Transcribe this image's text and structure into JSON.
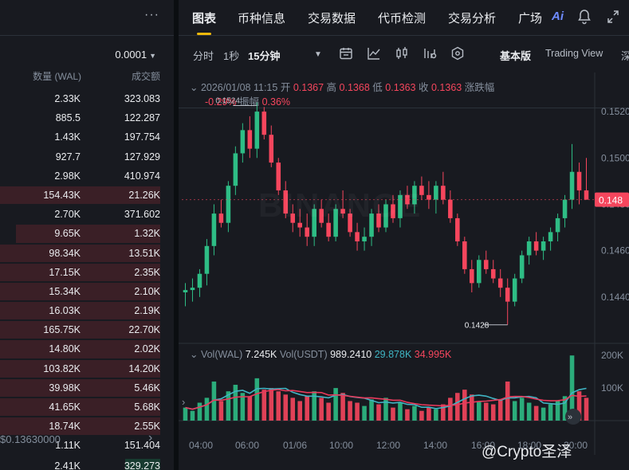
{
  "orderbook": {
    "precision": "0.0001",
    "col_qty": "数量 (WAL)",
    "col_total": "成交额",
    "rows": [
      {
        "qty": "2.33K",
        "total": "323.083"
      },
      {
        "qty": "885.5",
        "total": "122.287"
      },
      {
        "qty": "1.43K",
        "total": "197.754"
      },
      {
        "qty": "927.7",
        "total": "127.929"
      },
      {
        "qty": "2.98K",
        "total": "410.974"
      },
      {
        "qty": "154.43K",
        "total": "21.26K"
      },
      {
        "qty": "2.70K",
        "total": "371.602"
      },
      {
        "qty": "9.65K",
        "total": "1.32K"
      },
      {
        "qty": "98.34K",
        "total": "13.51K"
      },
      {
        "qty": "17.15K",
        "total": "2.35K"
      },
      {
        "qty": "15.34K",
        "total": "2.10K"
      },
      {
        "qty": "16.03K",
        "total": "2.19K"
      },
      {
        "qty": "165.75K",
        "total": "22.70K"
      },
      {
        "qty": "14.80K",
        "total": "2.02K"
      },
      {
        "qty": "103.82K",
        "total": "14.20K"
      },
      {
        "qty": "39.98K",
        "total": "5.46K"
      },
      {
        "qty": "41.65K",
        "total": "5.68K"
      },
      {
        "qty": "18.74K",
        "total": "2.55K"
      },
      {
        "qty": "1.11K",
        "total": "151.404"
      }
    ],
    "depth_fractions": [
      0,
      0,
      0,
      0,
      0,
      1.0,
      0,
      0.9,
      1.0,
      1.0,
      1.0,
      1.0,
      1.0,
      1.0,
      1.0,
      1.0,
      1.0,
      1.0,
      0
    ],
    "mid_price": "$0.13630000",
    "bottom_row": {
      "qty": "2.41K",
      "total": "329.273"
    }
  },
  "tabs": [
    "图表",
    "币种信息",
    "交易数据",
    "代币检测",
    "交易分析",
    "广场"
  ],
  "ai_label": "Ai",
  "toolbar": {
    "time_label": "分时",
    "sec_label": "1秒",
    "interval_label": "15分钟",
    "basic_label": "基本版",
    "tv_label": "Trading View",
    "depth_label": "深"
  },
  "legend": {
    "date": "2026/01/08 11:15",
    "open_lbl": "开",
    "open": "0.1367",
    "high_lbl": "高",
    "high": "0.1368",
    "low_lbl": "低",
    "low": "0.1363",
    "close_lbl": "收",
    "close": "0.1363",
    "change_lbl": "涨跌幅",
    "change": "-0.29%",
    "amp_lbl": "振幅",
    "amp": "0.36%"
  },
  "vol_legend": {
    "wal_lbl": "Vol(WAL)",
    "wal": "7.245K",
    "usdt_lbl": "Vol(USDT)",
    "usdt": "989.2410",
    "ma1": "29.878K",
    "ma2": "34.995K"
  },
  "watermark": "BINANCE",
  "credit": "@Crypto圣泽",
  "colors": {
    "up": "#2ebd85",
    "down": "#f6465d",
    "accent": "#f0b90b",
    "bg": "#181a20",
    "ma1": "#3fb5c4",
    "ma2": "#e83a5c"
  },
  "chart_data": {
    "type": "candlestick",
    "price_ticks": [
      "0.1520",
      "0.1500",
      "0.1480",
      "0.1460",
      "0.1440"
    ],
    "price_tick_values": [
      0.152,
      0.15,
      0.148,
      0.146,
      0.144
    ],
    "current_price_label": "0.148",
    "current_price": 0.1482,
    "annotations": [
      {
        "label": "0.1524",
        "value": 0.1524
      },
      {
        "label": "0.1428",
        "value": 0.1428
      }
    ],
    "x_ticks": [
      "04:00",
      "06:00",
      "01/06",
      "10:00",
      "12:00",
      "14:00",
      "16:00",
      "18:00",
      "20:00"
    ],
    "vol_ticks": [
      "200K",
      "100K"
    ],
    "vol_tick_values": [
      200000,
      100000
    ],
    "candles": [
      {
        "o": 0.1442,
        "h": 0.1446,
        "l": 0.1436,
        "c": 0.1443,
        "v": 40000
      },
      {
        "o": 0.1443,
        "h": 0.1448,
        "l": 0.1438,
        "c": 0.1444,
        "v": 30000
      },
      {
        "o": 0.1444,
        "h": 0.1452,
        "l": 0.144,
        "c": 0.145,
        "v": 55000
      },
      {
        "o": 0.145,
        "h": 0.1465,
        "l": 0.1445,
        "c": 0.1462,
        "v": 70000
      },
      {
        "o": 0.1462,
        "h": 0.148,
        "l": 0.1458,
        "c": 0.1476,
        "v": 120000
      },
      {
        "o": 0.1476,
        "h": 0.1482,
        "l": 0.147,
        "c": 0.1472,
        "v": 60000
      },
      {
        "o": 0.1472,
        "h": 0.149,
        "l": 0.1468,
        "c": 0.1488,
        "v": 90000
      },
      {
        "o": 0.1488,
        "h": 0.1505,
        "l": 0.1484,
        "c": 0.1502,
        "v": 110000
      },
      {
        "o": 0.1502,
        "h": 0.1515,
        "l": 0.1498,
        "c": 0.1512,
        "v": 85000
      },
      {
        "o": 0.1512,
        "h": 0.1518,
        "l": 0.15,
        "c": 0.1504,
        "v": 75000
      },
      {
        "o": 0.1504,
        "h": 0.1524,
        "l": 0.15,
        "c": 0.152,
        "v": 130000
      },
      {
        "o": 0.152,
        "h": 0.1522,
        "l": 0.1508,
        "c": 0.151,
        "v": 95000
      },
      {
        "o": 0.151,
        "h": 0.1514,
        "l": 0.1496,
        "c": 0.1498,
        "v": 100000
      },
      {
        "o": 0.1498,
        "h": 0.15,
        "l": 0.1484,
        "c": 0.1486,
        "v": 90000
      },
      {
        "o": 0.1486,
        "h": 0.149,
        "l": 0.1474,
        "c": 0.1476,
        "v": 80000
      },
      {
        "o": 0.1476,
        "h": 0.148,
        "l": 0.1468,
        "c": 0.1472,
        "v": 70000
      },
      {
        "o": 0.1472,
        "h": 0.1478,
        "l": 0.1466,
        "c": 0.147,
        "v": 60000
      },
      {
        "o": 0.147,
        "h": 0.1476,
        "l": 0.1462,
        "c": 0.1466,
        "v": 75000
      },
      {
        "o": 0.1466,
        "h": 0.148,
        "l": 0.1462,
        "c": 0.1478,
        "v": 90000
      },
      {
        "o": 0.1478,
        "h": 0.1482,
        "l": 0.147,
        "c": 0.1472,
        "v": 70000
      },
      {
        "o": 0.1472,
        "h": 0.1476,
        "l": 0.1464,
        "c": 0.1466,
        "v": 55000
      },
      {
        "o": 0.1466,
        "h": 0.148,
        "l": 0.1464,
        "c": 0.1478,
        "v": 100000
      },
      {
        "o": 0.1478,
        "h": 0.1486,
        "l": 0.1474,
        "c": 0.1476,
        "v": 85000
      },
      {
        "o": 0.1476,
        "h": 0.1478,
        "l": 0.1466,
        "c": 0.1468,
        "v": 60000
      },
      {
        "o": 0.1468,
        "h": 0.1472,
        "l": 0.146,
        "c": 0.1464,
        "v": 55000
      },
      {
        "o": 0.1464,
        "h": 0.147,
        "l": 0.146,
        "c": 0.1466,
        "v": 45000
      },
      {
        "o": 0.1466,
        "h": 0.1478,
        "l": 0.1462,
        "c": 0.1476,
        "v": 65000
      },
      {
        "o": 0.1476,
        "h": 0.148,
        "l": 0.1468,
        "c": 0.147,
        "v": 50000
      },
      {
        "o": 0.147,
        "h": 0.1482,
        "l": 0.1468,
        "c": 0.148,
        "v": 70000
      },
      {
        "o": 0.148,
        "h": 0.1484,
        "l": 0.1472,
        "c": 0.1474,
        "v": 40000
      },
      {
        "o": 0.1474,
        "h": 0.1486,
        "l": 0.147,
        "c": 0.1484,
        "v": 55000
      },
      {
        "o": 0.1484,
        "h": 0.1488,
        "l": 0.1478,
        "c": 0.148,
        "v": 35000
      },
      {
        "o": 0.148,
        "h": 0.149,
        "l": 0.1476,
        "c": 0.1488,
        "v": 45000
      },
      {
        "o": 0.1488,
        "h": 0.1492,
        "l": 0.1482,
        "c": 0.1484,
        "v": 30000
      },
      {
        "o": 0.1484,
        "h": 0.149,
        "l": 0.1478,
        "c": 0.1482,
        "v": 40000
      },
      {
        "o": 0.1482,
        "h": 0.149,
        "l": 0.1476,
        "c": 0.1488,
        "v": 35000
      },
      {
        "o": 0.1488,
        "h": 0.1494,
        "l": 0.148,
        "c": 0.1482,
        "v": 50000
      },
      {
        "o": 0.1482,
        "h": 0.1486,
        "l": 0.1472,
        "c": 0.1474,
        "v": 70000
      },
      {
        "o": 0.1474,
        "h": 0.1476,
        "l": 0.1462,
        "c": 0.1464,
        "v": 85000
      },
      {
        "o": 0.1464,
        "h": 0.1466,
        "l": 0.145,
        "c": 0.1452,
        "v": 95000
      },
      {
        "o": 0.1452,
        "h": 0.1456,
        "l": 0.1442,
        "c": 0.1446,
        "v": 80000
      },
      {
        "o": 0.1446,
        "h": 0.1458,
        "l": 0.1444,
        "c": 0.1456,
        "v": 60000
      },
      {
        "o": 0.1456,
        "h": 0.146,
        "l": 0.145,
        "c": 0.1452,
        "v": 55000
      },
      {
        "o": 0.1452,
        "h": 0.1456,
        "l": 0.1446,
        "c": 0.1448,
        "v": 50000
      },
      {
        "o": 0.1448,
        "h": 0.1452,
        "l": 0.144,
        "c": 0.1444,
        "v": 65000
      },
      {
        "o": 0.1444,
        "h": 0.1448,
        "l": 0.1428,
        "c": 0.1438,
        "v": 120000
      },
      {
        "o": 0.1438,
        "h": 0.145,
        "l": 0.1436,
        "c": 0.1448,
        "v": 60000
      },
      {
        "o": 0.1448,
        "h": 0.146,
        "l": 0.1446,
        "c": 0.1458,
        "v": 70000
      },
      {
        "o": 0.1458,
        "h": 0.1466,
        "l": 0.1454,
        "c": 0.1464,
        "v": 55000
      },
      {
        "o": 0.1464,
        "h": 0.1468,
        "l": 0.1458,
        "c": 0.146,
        "v": 45000
      },
      {
        "o": 0.146,
        "h": 0.1466,
        "l": 0.1456,
        "c": 0.1464,
        "v": 40000
      },
      {
        "o": 0.1464,
        "h": 0.147,
        "l": 0.146,
        "c": 0.1468,
        "v": 50000
      },
      {
        "o": 0.1468,
        "h": 0.1476,
        "l": 0.1464,
        "c": 0.1474,
        "v": 60000
      },
      {
        "o": 0.1474,
        "h": 0.1484,
        "l": 0.147,
        "c": 0.1482,
        "v": 75000
      },
      {
        "o": 0.1482,
        "h": 0.1506,
        "l": 0.1478,
        "c": 0.1494,
        "v": 200000
      },
      {
        "o": 0.1494,
        "h": 0.1498,
        "l": 0.148,
        "c": 0.1486,
        "v": 90000
      },
      {
        "o": 0.1486,
        "h": 0.15,
        "l": 0.1482,
        "c": 0.1482,
        "v": 70000
      }
    ]
  }
}
